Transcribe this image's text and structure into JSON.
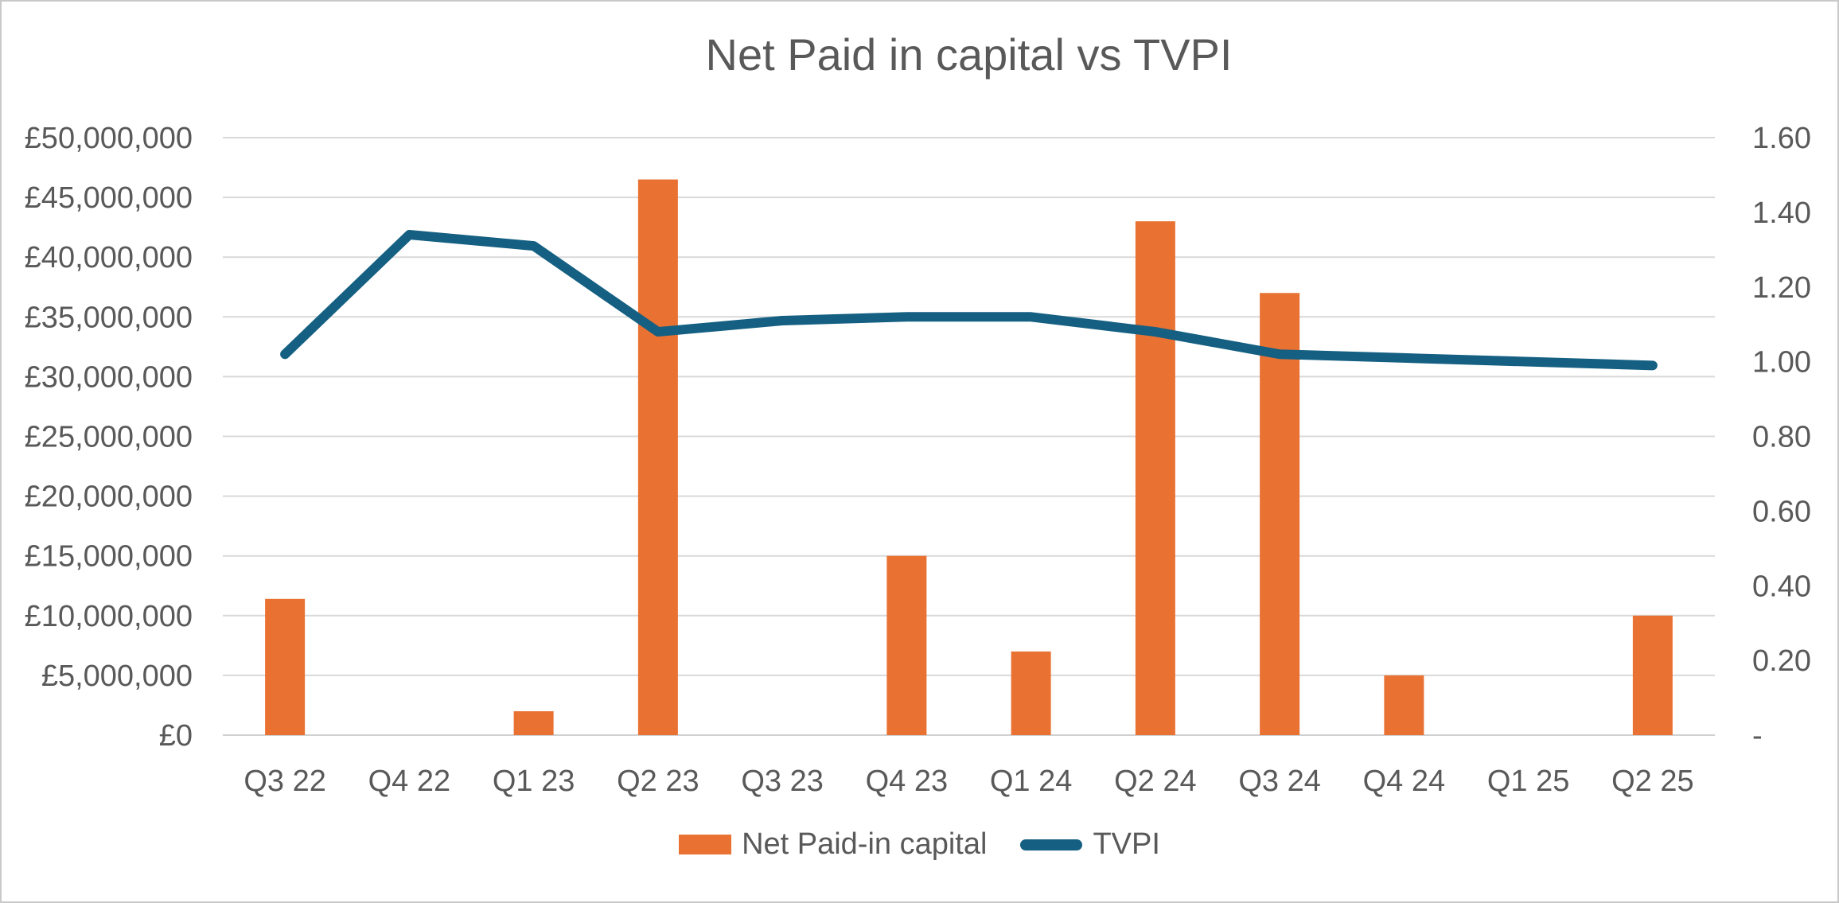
{
  "colors": {
    "bar": "#E97132",
    "line": "#156082",
    "grid": "#D9D9D9",
    "baseline": "#D0D0D0",
    "text": "#595959",
    "background": "#FFFFFF",
    "frame_border": "#C9C9C9"
  },
  "chart_data": {
    "type": "combo-bar-line",
    "title": "Net Paid in capital vs TVPI",
    "categories": [
      "Q3 22",
      "Q4 22",
      "Q1 23",
      "Q2 23",
      "Q3 23",
      "Q4 23",
      "Q1 24",
      "Q2 24",
      "Q3 24",
      "Q4 24",
      "Q1 25",
      "Q2 25"
    ],
    "series": [
      {
        "name": "Net Paid-in capital",
        "type": "bar",
        "axis": "left",
        "color": "#E97132",
        "values": [
          11400000,
          0,
          2000000,
          46500000,
          0,
          15000000,
          7000000,
          43000000,
          37000000,
          5000000,
          0,
          10000000
        ]
      },
      {
        "name": "TVPI",
        "type": "line",
        "axis": "right",
        "color": "#156082",
        "values": [
          1.02,
          1.34,
          1.31,
          1.08,
          1.11,
          1.12,
          1.12,
          1.08,
          1.02,
          1.01,
          1.0,
          0.99
        ]
      }
    ],
    "left_axis": {
      "min": 0,
      "max": 50000000,
      "step": 5000000,
      "tick_labels": [
        "£0",
        "£5,000,000",
        "£10,000,000",
        "£15,000,000",
        "£20,000,000",
        "£25,000,000",
        "£30,000,000",
        "£35,000,000",
        "£40,000,000",
        "£45,000,000",
        "£50,000,000"
      ]
    },
    "right_axis": {
      "min": 0,
      "max": 1.6,
      "step": 0.2,
      "tick_labels": [
        "-",
        "0.20",
        "0.40",
        "0.60",
        "0.80",
        "1.00",
        "1.20",
        "1.40",
        "1.60"
      ]
    },
    "grid": true,
    "legend_position": "bottom"
  }
}
